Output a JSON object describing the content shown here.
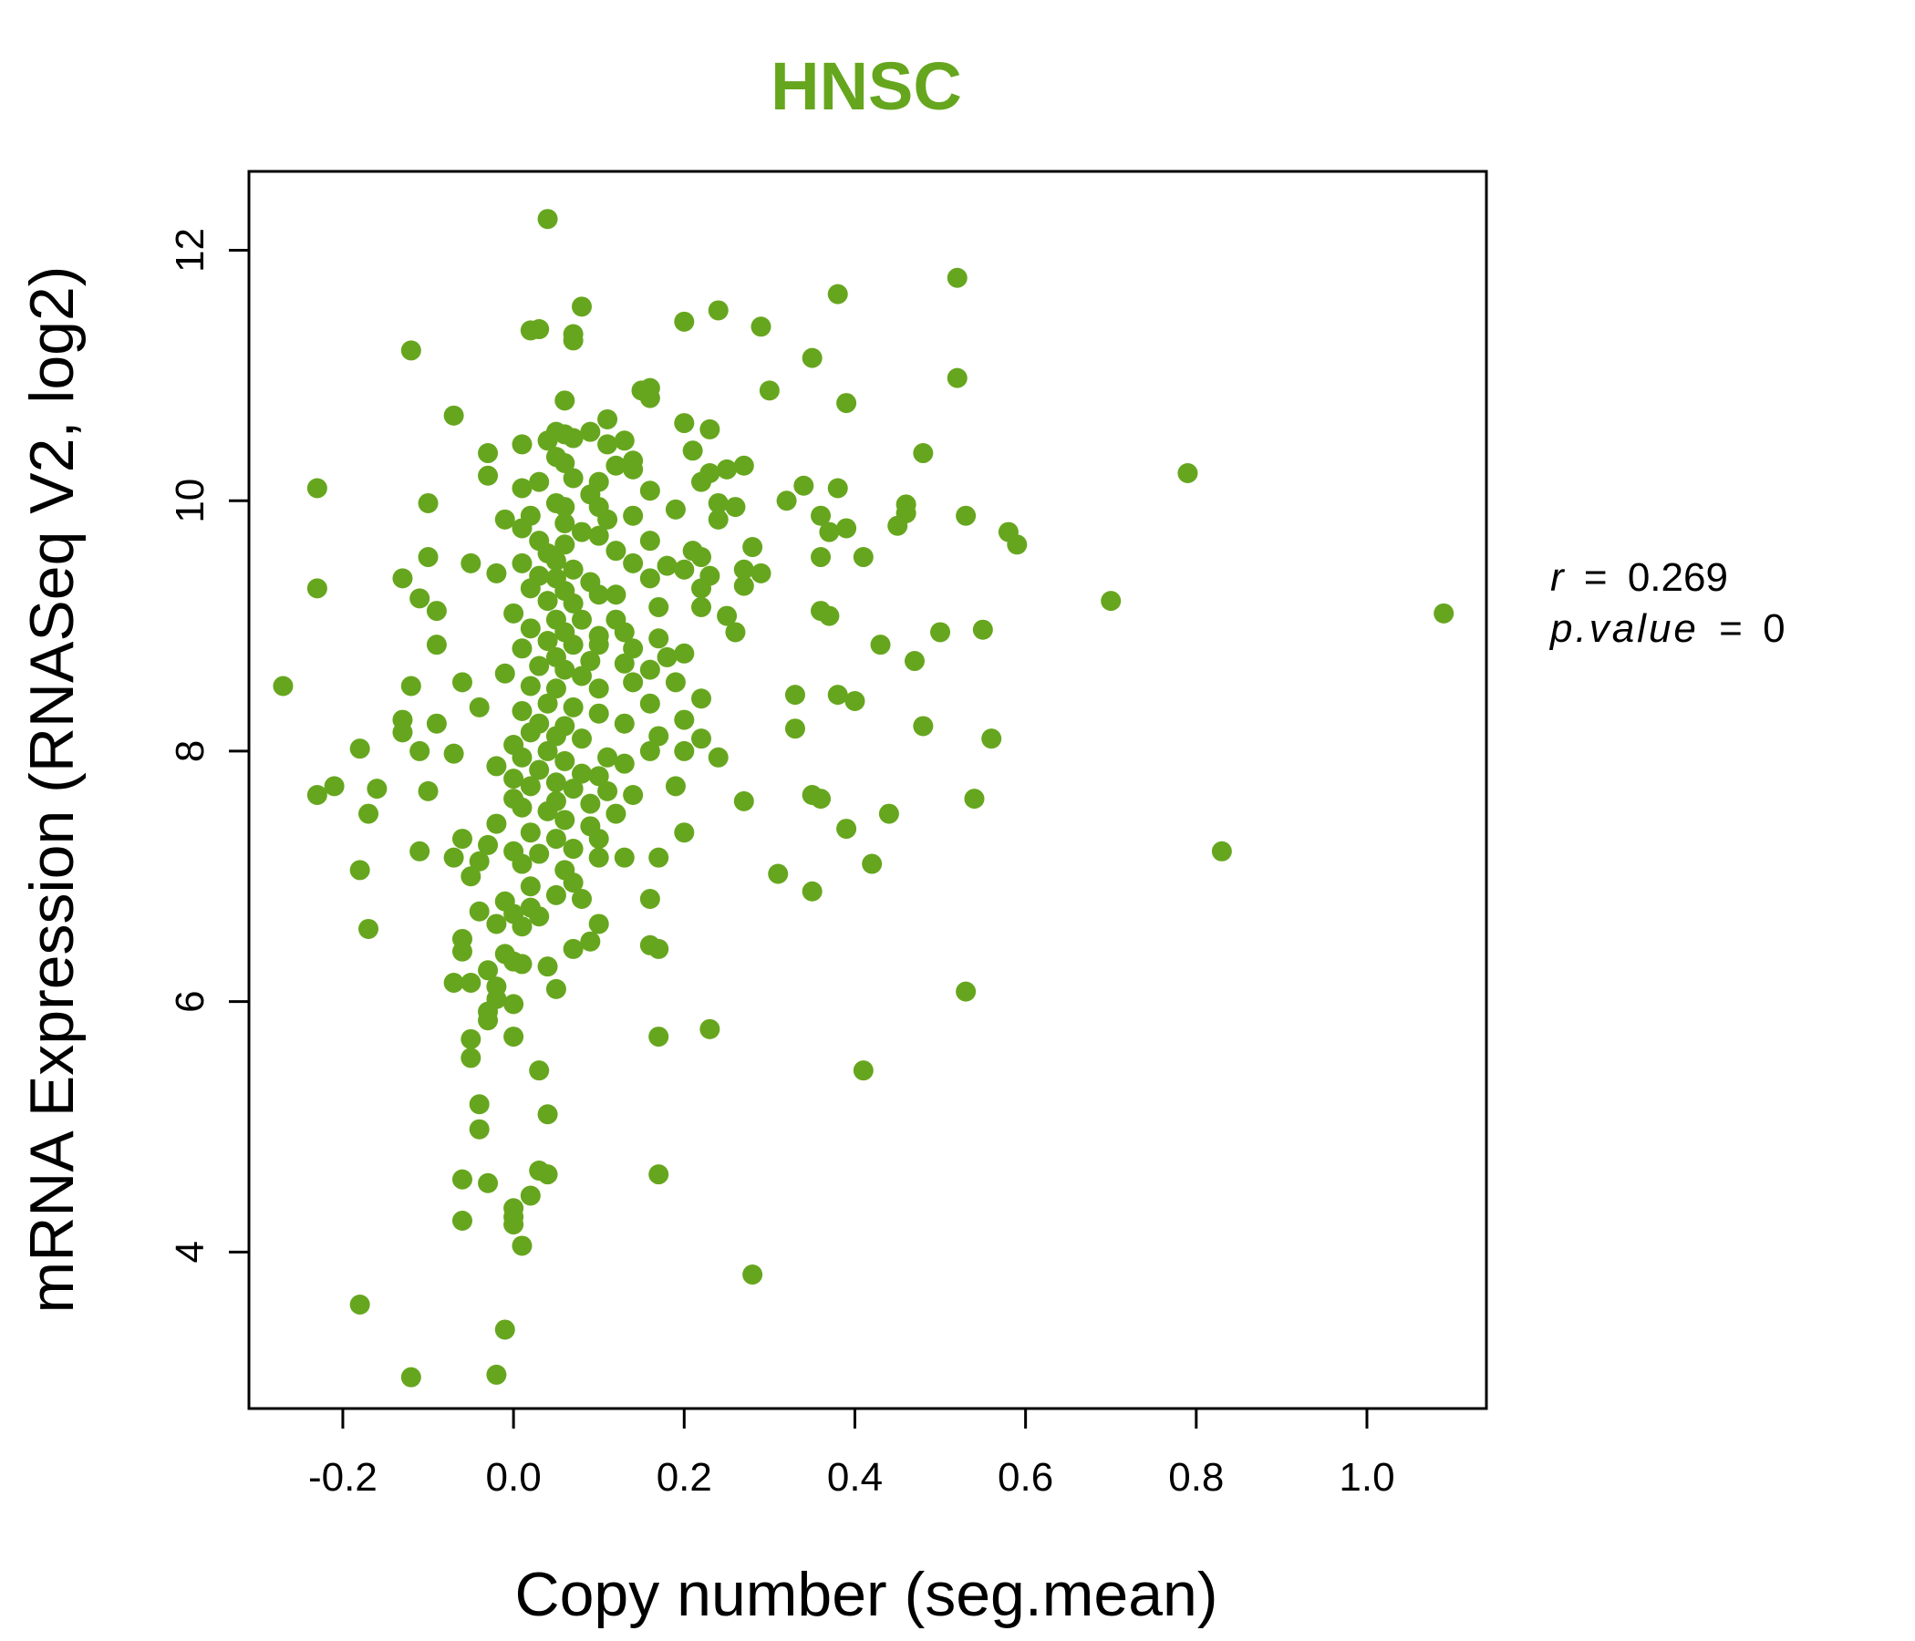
{
  "chart_data": {
    "type": "scatter",
    "title": "HNSC",
    "xlabel": "Copy number (seg.mean)",
    "ylabel": "mRNA Expression (RNASeq V2, log2)",
    "xlim": [
      -0.31,
      1.14
    ],
    "ylim": [
      2.75,
      12.63
    ],
    "x_ticks": [
      -0.2,
      0.0,
      0.2,
      0.4,
      0.6,
      0.8,
      1.0
    ],
    "x_tick_labels": [
      "-0.2",
      "0.0",
      "0.2",
      "0.4",
      "0.6",
      "0.8",
      "1.0"
    ],
    "y_ticks": [
      4,
      6,
      8,
      10,
      12
    ],
    "y_tick_labels": [
      "4",
      "6",
      "8",
      "10",
      "12"
    ],
    "grid": false,
    "marker_color": "#66a61e",
    "stats": {
      "r_label": "r",
      "r_value": "0.269",
      "p_label": "p.value",
      "p_value": "0"
    },
    "points": [
      [
        0.04,
        12.25
      ],
      [
        0.52,
        11.78
      ],
      [
        0.08,
        11.55
      ],
      [
        0.24,
        11.52
      ],
      [
        0.38,
        11.65
      ],
      [
        0.02,
        11.36
      ],
      [
        0.03,
        11.37
      ],
      [
        0.07,
        11.33
      ],
      [
        0.07,
        11.28
      ],
      [
        -0.12,
        11.2
      ],
      [
        0.2,
        11.43
      ],
      [
        0.29,
        11.39
      ],
      [
        0.35,
        11.14
      ],
      [
        0.52,
        10.98
      ],
      [
        0.16,
        10.9
      ],
      [
        0.15,
        10.88
      ],
      [
        0.16,
        10.82
      ],
      [
        0.3,
        10.88
      ],
      [
        0.39,
        10.78
      ],
      [
        0.06,
        10.8
      ],
      [
        -0.07,
        10.68
      ],
      [
        0.11,
        10.65
      ],
      [
        0.09,
        10.55
      ],
      [
        0.2,
        10.62
      ],
      [
        0.23,
        10.57
      ],
      [
        0.05,
        10.55
      ],
      [
        0.06,
        10.53
      ],
      [
        0.07,
        10.5
      ],
      [
        0.04,
        10.48
      ],
      [
        0.13,
        10.48
      ],
      [
        0.11,
        10.45
      ],
      [
        0.01,
        10.45
      ],
      [
        -0.03,
        10.38
      ],
      [
        0.05,
        10.35
      ],
      [
        0.14,
        10.32
      ],
      [
        0.21,
        10.4
      ],
      [
        0.48,
        10.38
      ],
      [
        0.06,
        10.3
      ],
      [
        0.12,
        10.28
      ],
      [
        0.14,
        10.25
      ],
      [
        0.23,
        10.22
      ],
      [
        0.25,
        10.25
      ],
      [
        0.27,
        10.28
      ],
      [
        0.22,
        10.15
      ],
      [
        -0.03,
        10.2
      ],
      [
        0.79,
        10.22
      ],
      [
        0.03,
        10.15
      ],
      [
        0.07,
        10.18
      ],
      [
        0.1,
        10.15
      ],
      [
        0.09,
        10.05
      ],
      [
        0.16,
        10.08
      ],
      [
        -0.23,
        10.1
      ],
      [
        0.01,
        10.1
      ],
      [
        -0.1,
        9.98
      ],
      [
        0.05,
        9.98
      ],
      [
        0.06,
        9.95
      ],
      [
        0.1,
        9.95
      ],
      [
        0.32,
        10.0
      ],
      [
        0.34,
        10.12
      ],
      [
        0.38,
        10.1
      ],
      [
        0.24,
        9.98
      ],
      [
        0.26,
        9.95
      ],
      [
        0.46,
        9.97
      ],
      [
        0.46,
        9.9
      ],
      [
        0.36,
        9.88
      ],
      [
        0.53,
        9.88
      ],
      [
        0.02,
        9.88
      ],
      [
        0.14,
        9.88
      ],
      [
        -0.01,
        9.85
      ],
      [
        0.06,
        9.82
      ],
      [
        0.11,
        9.85
      ],
      [
        0.19,
        9.93
      ],
      [
        0.24,
        9.85
      ],
      [
        0.45,
        9.8
      ],
      [
        0.39,
        9.78
      ],
      [
        0.37,
        9.75
      ],
      [
        0.58,
        9.75
      ],
      [
        0.59,
        9.65
      ],
      [
        0.01,
        9.78
      ],
      [
        0.08,
        9.75
      ],
      [
        0.1,
        9.72
      ],
      [
        0.16,
        9.68
      ],
      [
        0.03,
        9.68
      ],
      [
        0.06,
        9.65
      ],
      [
        0.28,
        9.63
      ],
      [
        0.21,
        9.6
      ],
      [
        0.22,
        9.55
      ],
      [
        0.12,
        9.6
      ],
      [
        0.04,
        9.58
      ],
      [
        0.41,
        9.55
      ],
      [
        0.36,
        9.55
      ],
      [
        -0.1,
        9.55
      ],
      [
        -0.05,
        9.5
      ],
      [
        0.01,
        9.5
      ],
      [
        0.05,
        9.52
      ],
      [
        0.07,
        9.45
      ],
      [
        0.14,
        9.5
      ],
      [
        0.18,
        9.48
      ],
      [
        0.2,
        9.45
      ],
      [
        0.27,
        9.45
      ],
      [
        0.29,
        9.42
      ],
      [
        0.23,
        9.4
      ],
      [
        -0.02,
        9.42
      ],
      [
        0.03,
        9.4
      ],
      [
        0.05,
        9.38
      ],
      [
        0.09,
        9.35
      ],
      [
        0.16,
        9.38
      ],
      [
        -0.13,
        9.38
      ],
      [
        -0.23,
        9.3
      ],
      [
        0.02,
        9.3
      ],
      [
        0.06,
        9.28
      ],
      [
        0.1,
        9.25
      ],
      [
        0.12,
        9.25
      ],
      [
        0.22,
        9.3
      ],
      [
        0.27,
        9.32
      ],
      [
        0.7,
        9.2
      ],
      [
        -0.11,
        9.22
      ],
      [
        0.04,
        9.2
      ],
      [
        0.07,
        9.18
      ],
      [
        0.17,
        9.15
      ],
      [
        0.22,
        9.15
      ],
      [
        0.36,
        9.12
      ],
      [
        0.37,
        9.08
      ],
      [
        0.25,
        9.08
      ],
      [
        -0.09,
        9.12
      ],
      [
        0.0,
        9.1
      ],
      [
        0.05,
        9.05
      ],
      [
        0.08,
        9.05
      ],
      [
        0.12,
        9.05
      ],
      [
        1.09,
        9.1
      ],
      [
        0.55,
        8.97
      ],
      [
        0.5,
        8.95
      ],
      [
        0.26,
        8.95
      ],
      [
        0.02,
        8.98
      ],
      [
        0.06,
        8.95
      ],
      [
        0.1,
        8.92
      ],
      [
        0.13,
        8.95
      ],
      [
        0.17,
        8.9
      ],
      [
        0.04,
        8.88
      ],
      [
        0.07,
        8.85
      ],
      [
        0.1,
        8.85
      ],
      [
        0.14,
        8.82
      ],
      [
        0.43,
        8.85
      ],
      [
        -0.09,
        8.85
      ],
      [
        0.01,
        8.82
      ],
      [
        0.18,
        8.75
      ],
      [
        0.2,
        8.78
      ],
      [
        0.47,
        8.72
      ],
      [
        0.05,
        8.75
      ],
      [
        0.09,
        8.72
      ],
      [
        0.13,
        8.7
      ],
      [
        0.03,
        8.68
      ],
      [
        0.06,
        8.65
      ],
      [
        0.16,
        8.65
      ],
      [
        -0.01,
        8.62
      ],
      [
        0.08,
        8.6
      ],
      [
        0.14,
        8.55
      ],
      [
        0.19,
        8.55
      ],
      [
        -0.12,
        8.52
      ],
      [
        -0.06,
        8.55
      ],
      [
        0.02,
        8.52
      ],
      [
        0.05,
        8.5
      ],
      [
        0.1,
        8.5
      ],
      [
        -0.27,
        8.52
      ],
      [
        0.33,
        8.45
      ],
      [
        0.38,
        8.45
      ],
      [
        0.22,
        8.42
      ],
      [
        0.4,
        8.4
      ],
      [
        0.04,
        8.38
      ],
      [
        0.07,
        8.35
      ],
      [
        0.16,
        8.38
      ],
      [
        -0.04,
        8.35
      ],
      [
        0.01,
        8.32
      ],
      [
        0.1,
        8.3
      ],
      [
        -0.13,
        8.25
      ],
      [
        -0.09,
        8.22
      ],
      [
        0.03,
        8.22
      ],
      [
        0.06,
        8.2
      ],
      [
        0.13,
        8.22
      ],
      [
        0.2,
        8.25
      ],
      [
        0.33,
        8.18
      ],
      [
        0.48,
        8.2
      ],
      [
        0.02,
        8.15
      ],
      [
        0.05,
        8.12
      ],
      [
        0.08,
        8.1
      ],
      [
        0.17,
        8.12
      ],
      [
        0.22,
        8.1
      ],
      [
        0.56,
        8.1
      ],
      [
        -0.13,
        8.15
      ],
      [
        -0.18,
        8.02
      ],
      [
        0.0,
        8.05
      ],
      [
        0.04,
        8.0
      ],
      [
        0.11,
        7.95
      ],
      [
        0.16,
        8.0
      ],
      [
        0.2,
        8.0
      ],
      [
        0.24,
        7.95
      ],
      [
        -0.11,
        8.0
      ],
      [
        -0.07,
        7.98
      ],
      [
        0.01,
        7.95
      ],
      [
        0.06,
        7.92
      ],
      [
        0.13,
        7.9
      ],
      [
        -0.02,
        7.88
      ],
      [
        0.03,
        7.85
      ],
      [
        0.08,
        7.82
      ],
      [
        0.1,
        7.8
      ],
      [
        0.0,
        7.78
      ],
      [
        0.05,
        7.75
      ],
      [
        -0.21,
        7.72
      ],
      [
        -0.16,
        7.7
      ],
      [
        -0.1,
        7.68
      ],
      [
        0.02,
        7.72
      ],
      [
        0.07,
        7.7
      ],
      [
        0.11,
        7.68
      ],
      [
        0.14,
        7.65
      ],
      [
        0.19,
        7.72
      ],
      [
        0.35,
        7.65
      ],
      [
        0.36,
        7.62
      ],
      [
        0.54,
        7.62
      ],
      [
        0.27,
        7.6
      ],
      [
        -0.23,
        7.65
      ],
      [
        0.0,
        7.62
      ],
      [
        0.05,
        7.6
      ],
      [
        0.09,
        7.58
      ],
      [
        0.01,
        7.55
      ],
      [
        0.04,
        7.52
      ],
      [
        0.12,
        7.5
      ],
      [
        -0.17,
        7.5
      ],
      [
        0.44,
        7.5
      ],
      [
        0.06,
        7.45
      ],
      [
        -0.02,
        7.42
      ],
      [
        0.09,
        7.4
      ],
      [
        0.39,
        7.38
      ],
      [
        0.2,
        7.35
      ],
      [
        0.02,
        7.35
      ],
      [
        0.05,
        7.3
      ],
      [
        0.1,
        7.3
      ],
      [
        -0.06,
        7.3
      ],
      [
        -0.03,
        7.25
      ],
      [
        0.07,
        7.22
      ],
      [
        -0.11,
        7.2
      ],
      [
        0.0,
        7.2
      ],
      [
        0.03,
        7.18
      ],
      [
        0.13,
        7.15
      ],
      [
        0.17,
        7.15
      ],
      [
        0.83,
        7.2
      ],
      [
        -0.07,
        7.15
      ],
      [
        -0.04,
        7.12
      ],
      [
        0.1,
        7.15
      ],
      [
        0.01,
        7.1
      ],
      [
        0.42,
        7.1
      ],
      [
        -0.18,
        7.05
      ],
      [
        0.06,
        7.05
      ],
      [
        -0.05,
        7.0
      ],
      [
        0.31,
        7.02
      ],
      [
        0.02,
        6.92
      ],
      [
        0.07,
        6.95
      ],
      [
        0.35,
        6.88
      ],
      [
        0.05,
        6.85
      ],
      [
        0.08,
        6.82
      ],
      [
        0.16,
        6.82
      ],
      [
        -0.01,
        6.8
      ],
      [
        0.02,
        6.75
      ],
      [
        -0.04,
        6.72
      ],
      [
        0.0,
        6.7
      ],
      [
        0.03,
        6.68
      ],
      [
        0.1,
        6.62
      ],
      [
        -0.02,
        6.62
      ],
      [
        0.01,
        6.6
      ],
      [
        -0.17,
        6.58
      ],
      [
        -0.06,
        6.5
      ],
      [
        0.09,
        6.48
      ],
      [
        0.16,
        6.45
      ],
      [
        0.17,
        6.42
      ],
      [
        -0.06,
        6.4
      ],
      [
        -0.01,
        6.38
      ],
      [
        0.07,
        6.42
      ],
      [
        0.0,
        6.32
      ],
      [
        0.01,
        6.3
      ],
      [
        0.04,
        6.28
      ],
      [
        -0.03,
        6.25
      ],
      [
        -0.07,
        6.15
      ],
      [
        -0.05,
        6.15
      ],
      [
        -0.02,
        6.12
      ],
      [
        0.05,
        6.1
      ],
      [
        0.53,
        6.08
      ],
      [
        -0.02,
        6.02
      ],
      [
        0.0,
        5.98
      ],
      [
        -0.03,
        5.92
      ],
      [
        -0.03,
        5.85
      ],
      [
        0.0,
        5.72
      ],
      [
        0.17,
        5.72
      ],
      [
        0.23,
        5.78
      ],
      [
        -0.05,
        5.7
      ],
      [
        -0.05,
        5.55
      ],
      [
        0.03,
        5.45
      ],
      [
        0.41,
        5.45
      ],
      [
        -0.04,
        5.18
      ],
      [
        0.04,
        5.1
      ],
      [
        -0.04,
        4.98
      ],
      [
        0.03,
        4.65
      ],
      [
        0.04,
        4.62
      ],
      [
        0.17,
        4.62
      ],
      [
        -0.06,
        4.58
      ],
      [
        -0.03,
        4.55
      ],
      [
        0.02,
        4.45
      ],
      [
        0.0,
        4.35
      ],
      [
        0.0,
        4.28
      ],
      [
        -0.06,
        4.25
      ],
      [
        0.0,
        4.22
      ],
      [
        0.01,
        4.05
      ],
      [
        0.28,
        3.82
      ],
      [
        -0.18,
        3.58
      ],
      [
        -0.01,
        3.38
      ],
      [
        -0.12,
        3.0
      ],
      [
        -0.02,
        3.02
      ]
    ]
  }
}
